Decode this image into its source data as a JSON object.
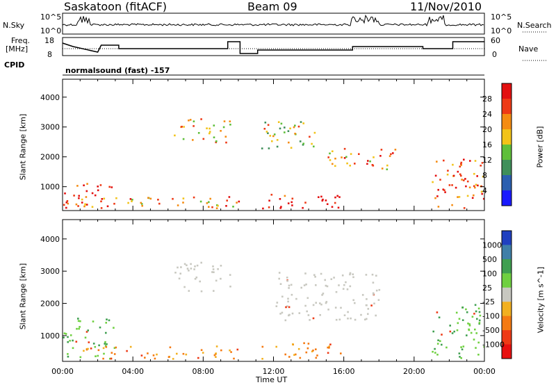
{
  "header": {
    "station": "Saskatoon (fitACF)",
    "beam": "Beam 09",
    "date": "11/Nov/2010"
  },
  "top_panels": {
    "nsky_label": "N.Sky",
    "nsky_tick_hi": "10^5",
    "nsky_tick_lo": "10^0",
    "nsearch_label": "N.Search",
    "freq_label_1": "Freq.",
    "freq_label_2": "[MHz]",
    "freq_tick_hi": "18",
    "freq_tick_lo": "8",
    "nave_label": "Nave",
    "nave_tick_hi": "60",
    "nave_tick_lo": "0",
    "cpid_label": "CPID",
    "cpid_value": "normalsound (fast) -157"
  },
  "chart_data": [
    {
      "type": "heatmap",
      "panel": "power",
      "ylabel": "Slant Range [km]",
      "yticks": [
        "1000",
        "2000",
        "3000",
        "4000"
      ],
      "ylim": [
        200,
        4600
      ],
      "xlim_hours": [
        0,
        24
      ],
      "colorbar": {
        "label": "Power [dB]",
        "ticks": [
          "4",
          "8",
          "12",
          "16",
          "20",
          "24",
          "28"
        ],
        "colors": [
          "#1a1aff",
          "#2b5fb0",
          "#3f8f5a",
          "#5fbf3a",
          "#f2c318",
          "#f58c12",
          "#ee3a16",
          "#e31010"
        ]
      },
      "features_hours_km": [
        {
          "t0": 0.0,
          "t1": 2.8,
          "r0": 300,
          "r1": 1200,
          "level": 28
        },
        {
          "t0": 1.0,
          "t1": 10.2,
          "r0": 300,
          "r1": 700,
          "level": 20
        },
        {
          "t0": 6.3,
          "t1": 9.5,
          "r0": 2500,
          "r1": 3300,
          "level": 16
        },
        {
          "t0": 11.3,
          "t1": 16.0,
          "r0": 300,
          "r1": 800,
          "level": 28
        },
        {
          "t0": 11.3,
          "t1": 14.5,
          "r0": 2300,
          "r1": 3300,
          "level": 16
        },
        {
          "t0": 15.0,
          "t1": 19.0,
          "r0": 1600,
          "r1": 2300,
          "level": 20
        },
        {
          "t0": 21.0,
          "t1": 24.0,
          "r0": 300,
          "r1": 2000,
          "level": 24
        }
      ]
    },
    {
      "type": "heatmap",
      "panel": "velocity",
      "ylabel": "Slant Range [km]",
      "yticks": [
        "1000",
        "2000",
        "3000",
        "4000"
      ],
      "ylim": [
        200,
        4600
      ],
      "xlim_hours": [
        0,
        24
      ],
      "xticks": [
        "00:00",
        "04:00",
        "08:00",
        "12:00",
        "16:00",
        "20:00",
        "00:00"
      ],
      "xlabel": "Time UT",
      "colorbar": {
        "label": "Velocity [m s^-1]",
        "ticks": [
          "1000",
          "500",
          "100",
          "25",
          "-25",
          "-100",
          "-500",
          "-1000"
        ],
        "colors": [
          "#2040c0",
          "#3f7fa8",
          "#3f9f50",
          "#6fd040",
          "#c8c8c0",
          "#f2b020",
          "#f57a12",
          "#ee3a16",
          "#e81010"
        ]
      },
      "features_hours_km": [
        {
          "t0": 0.0,
          "t1": 3.0,
          "r0": 300,
          "r1": 1600,
          "vel": 100
        },
        {
          "t0": 1.0,
          "t1": 10.2,
          "r0": 300,
          "r1": 700,
          "vel": -100
        },
        {
          "t0": 6.3,
          "t1": 9.5,
          "r0": 2400,
          "r1": 3300,
          "vel": 0
        },
        {
          "t0": 11.3,
          "t1": 16.0,
          "r0": 300,
          "r1": 800,
          "vel": -100
        },
        {
          "t0": 12.0,
          "t1": 18.0,
          "r0": 1500,
          "r1": 3000,
          "vel": 0
        },
        {
          "t0": 21.0,
          "t1": 24.0,
          "r0": 300,
          "r1": 2000,
          "vel": 100
        }
      ]
    }
  ]
}
